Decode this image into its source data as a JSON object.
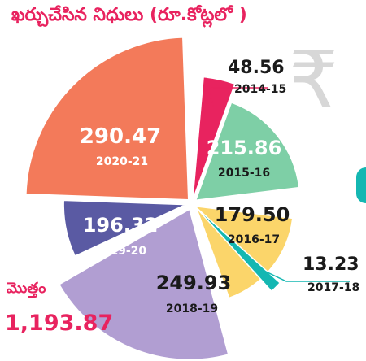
{
  "title": "ఖర్చుచేసిన నిధులు (రూ.కోట్లలో )",
  "total": {
    "label": "మొత్తం",
    "value": "1,193.87"
  },
  "icon": "rupee-icon",
  "chart_data": {
    "type": "pie",
    "variant": "polar-area (exploded)",
    "title": "ఖర్చుచేసిన నిధులు (రూ.కోట్లలో )",
    "slices": [
      {
        "year": "2014-15",
        "value": 48.56,
        "label": "48.56",
        "color": "#e8235f"
      },
      {
        "year": "2015-16",
        "value": 215.86,
        "label": "215.86",
        "color": "#7ecfa6"
      },
      {
        "year": "2016-17",
        "value": 179.5,
        "label": "179.50",
        "color": "#fbd56a"
      },
      {
        "year": "2017-18",
        "value": 13.23,
        "label": "13.23",
        "color": "#14b7b2"
      },
      {
        "year": "2018-19",
        "value": 249.93,
        "label": "249.93",
        "color": "#b19ed2"
      },
      {
        "year": "2019-20",
        "value": 196.32,
        "label": "196.32",
        "color": "#5a5aa3"
      },
      {
        "year": "2020-21",
        "value": 290.47,
        "label": "290.47",
        "color": "#f37a5a"
      }
    ],
    "total": 1193.87
  }
}
